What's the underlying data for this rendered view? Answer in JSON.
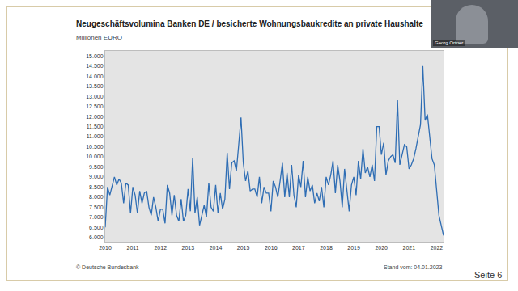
{
  "chart_data": {
    "type": "line",
    "title": "Neugeschäftsvolumina Banken DE / besicherte Wohnungsbaukredite an private Haushalte",
    "subtitle": "Millionen EURO",
    "categories": [
      "2010",
      null,
      null,
      null,
      null,
      null,
      null,
      null,
      null,
      null,
      null,
      null,
      "2011",
      null,
      null,
      null,
      null,
      null,
      null,
      null,
      null,
      null,
      null,
      null,
      "2012",
      null,
      null,
      null,
      null,
      null,
      null,
      null,
      null,
      null,
      null,
      null,
      "2013",
      null,
      null,
      null,
      null,
      null,
      null,
      null,
      null,
      null,
      null,
      null,
      "2014",
      null,
      null,
      null,
      null,
      null,
      null,
      null,
      null,
      null,
      null,
      null,
      "2015",
      null,
      null,
      null,
      null,
      null,
      null,
      null,
      null,
      null,
      null,
      null,
      "2016",
      null,
      null,
      null,
      null,
      null,
      null,
      null,
      null,
      null,
      null,
      null,
      "2017",
      null,
      null,
      null,
      null,
      null,
      null,
      null,
      null,
      null,
      null,
      null,
      "2018",
      null,
      null,
      null,
      null,
      null,
      null,
      null,
      null,
      null,
      null,
      null,
      "2019",
      null,
      null,
      null,
      null,
      null,
      null,
      null,
      null,
      null,
      null,
      null,
      "2020",
      null,
      null,
      null,
      null,
      null,
      null,
      null,
      null,
      null,
      null,
      null,
      "2021",
      null,
      null,
      null,
      null,
      null,
      null,
      null,
      null,
      null,
      null,
      null,
      "2022",
      null,
      null,
      null
    ],
    "values": [
      6500,
      8500,
      8100,
      8600,
      9000,
      8600,
      8900,
      8700,
      7700,
      8700,
      8600,
      7200,
      8500,
      8100,
      7200,
      8300,
      7700,
      8200,
      8300,
      7500,
      7100,
      8000,
      7500,
      6800,
      7400,
      7400,
      6700,
      8600,
      8200,
      7100,
      8100,
      7100,
      6800,
      7900,
      6800,
      7100,
      8400,
      7300,
      9950,
      7200,
      8000,
      6600,
      7100,
      7600,
      7000,
      8700,
      7500,
      7300,
      8600,
      7200,
      8200,
      7400,
      7900,
      10200,
      8400,
      9700,
      9800,
      9300,
      10600,
      11950,
      9700,
      8800,
      9300,
      8300,
      8400,
      8400,
      8000,
      9000,
      7700,
      8500,
      8200,
      8200,
      7300,
      8800,
      8500,
      8000,
      8800,
      9700,
      8000,
      9200,
      8000,
      9600,
      8100,
      7500,
      9100,
      8500,
      9800,
      8000,
      9000,
      8300,
      8600,
      7700,
      8200,
      7800,
      8500,
      7500,
      9000,
      8600,
      9100,
      9800,
      8200,
      9600,
      8800,
      7500,
      9400,
      8300,
      7300,
      8600,
      9000,
      8100,
      9800,
      8900,
      10400,
      9200,
      9500,
      9000,
      9600,
      8800,
      11500,
      11500,
      10100,
      10700,
      9100,
      9800,
      10000,
      10100,
      9700,
      12800,
      9600,
      10100,
      10600,
      10500,
      9400,
      9600,
      9900,
      10400,
      11000,
      11600,
      14500,
      11800,
      12100,
      11000,
      9900,
      9600,
      8200,
      7100,
      6600,
      6100
    ],
    "color": "#2e6db4",
    "ylim": [
      5750,
      15250
    ],
    "yticks": [
      {
        "value": 6000,
        "label": "6.000"
      },
      {
        "value": 6500,
        "label": "6.500"
      },
      {
        "value": 7000,
        "label": "7.000"
      },
      {
        "value": 7500,
        "label": "7.500"
      },
      {
        "value": 8000,
        "label": "8.000"
      },
      {
        "value": 8500,
        "label": "8.500"
      },
      {
        "value": 9000,
        "label": "9.000"
      },
      {
        "value": 9500,
        "label": "9.500"
      },
      {
        "value": 10000,
        "label": "10.000"
      },
      {
        "value": 10500,
        "label": "10.500"
      },
      {
        "value": 11000,
        "label": "11.000"
      },
      {
        "value": 11500,
        "label": "11.500"
      },
      {
        "value": 12000,
        "label": "12.000"
      },
      {
        "value": 12500,
        "label": "12.500"
      },
      {
        "value": 13000,
        "label": "13.000"
      },
      {
        "value": 13500,
        "label": "13.500"
      },
      {
        "value": 14000,
        "label": "14.000"
      },
      {
        "value": 14500,
        "label": "14.500"
      },
      {
        "value": 15000,
        "label": "15.000"
      }
    ],
    "grid": false,
    "annotations": [
      "© Deutsche Bundesbank",
      "Stand vom: 04.01.2023",
      "Seite 6",
      "Georg Ortner"
    ]
  }
}
